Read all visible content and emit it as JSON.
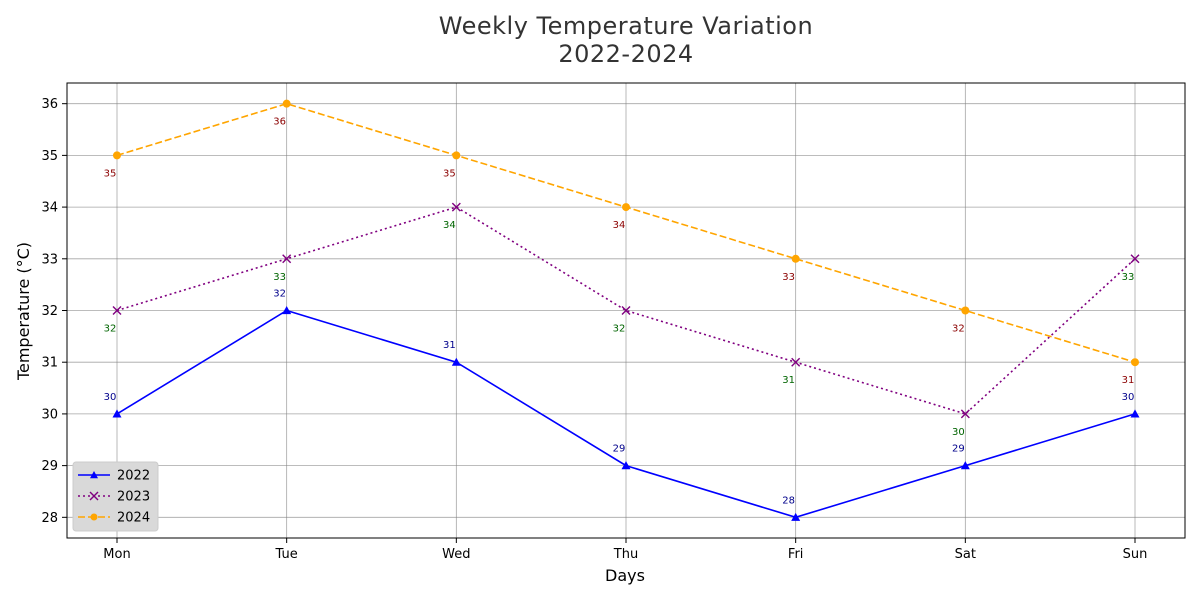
{
  "chart_data": {
    "type": "line",
    "title": "Weekly Temperature Variation",
    "subtitle": "2022-2024",
    "xlabel": "Days",
    "ylabel": "Temperature (°C)",
    "categories": [
      "Mon",
      "Tue",
      "Wed",
      "Thu",
      "Fri",
      "Sat",
      "Sun"
    ],
    "ylim": [
      27.6,
      36.4
    ],
    "yticks": [
      28,
      29,
      30,
      31,
      32,
      33,
      34,
      35,
      36
    ],
    "grid": true,
    "legend_position": "lower-left",
    "series": [
      {
        "name": "2022",
        "values": [
          30,
          32,
          31,
          29,
          28,
          29,
          30
        ],
        "color": "#0000ff",
        "label_color": "#00008b",
        "marker": "triangle",
        "line_style": "solid"
      },
      {
        "name": "2023",
        "values": [
          32,
          33,
          34,
          32,
          31,
          30,
          33
        ],
        "color": "#800080",
        "label_color": "#006400",
        "marker": "x",
        "line_style": "dotted"
      },
      {
        "name": "2024",
        "values": [
          35,
          36,
          35,
          34,
          33,
          32,
          31
        ],
        "color": "#ffa500",
        "label_color": "#8b0000",
        "marker": "circle",
        "line_style": "dashed"
      }
    ]
  }
}
